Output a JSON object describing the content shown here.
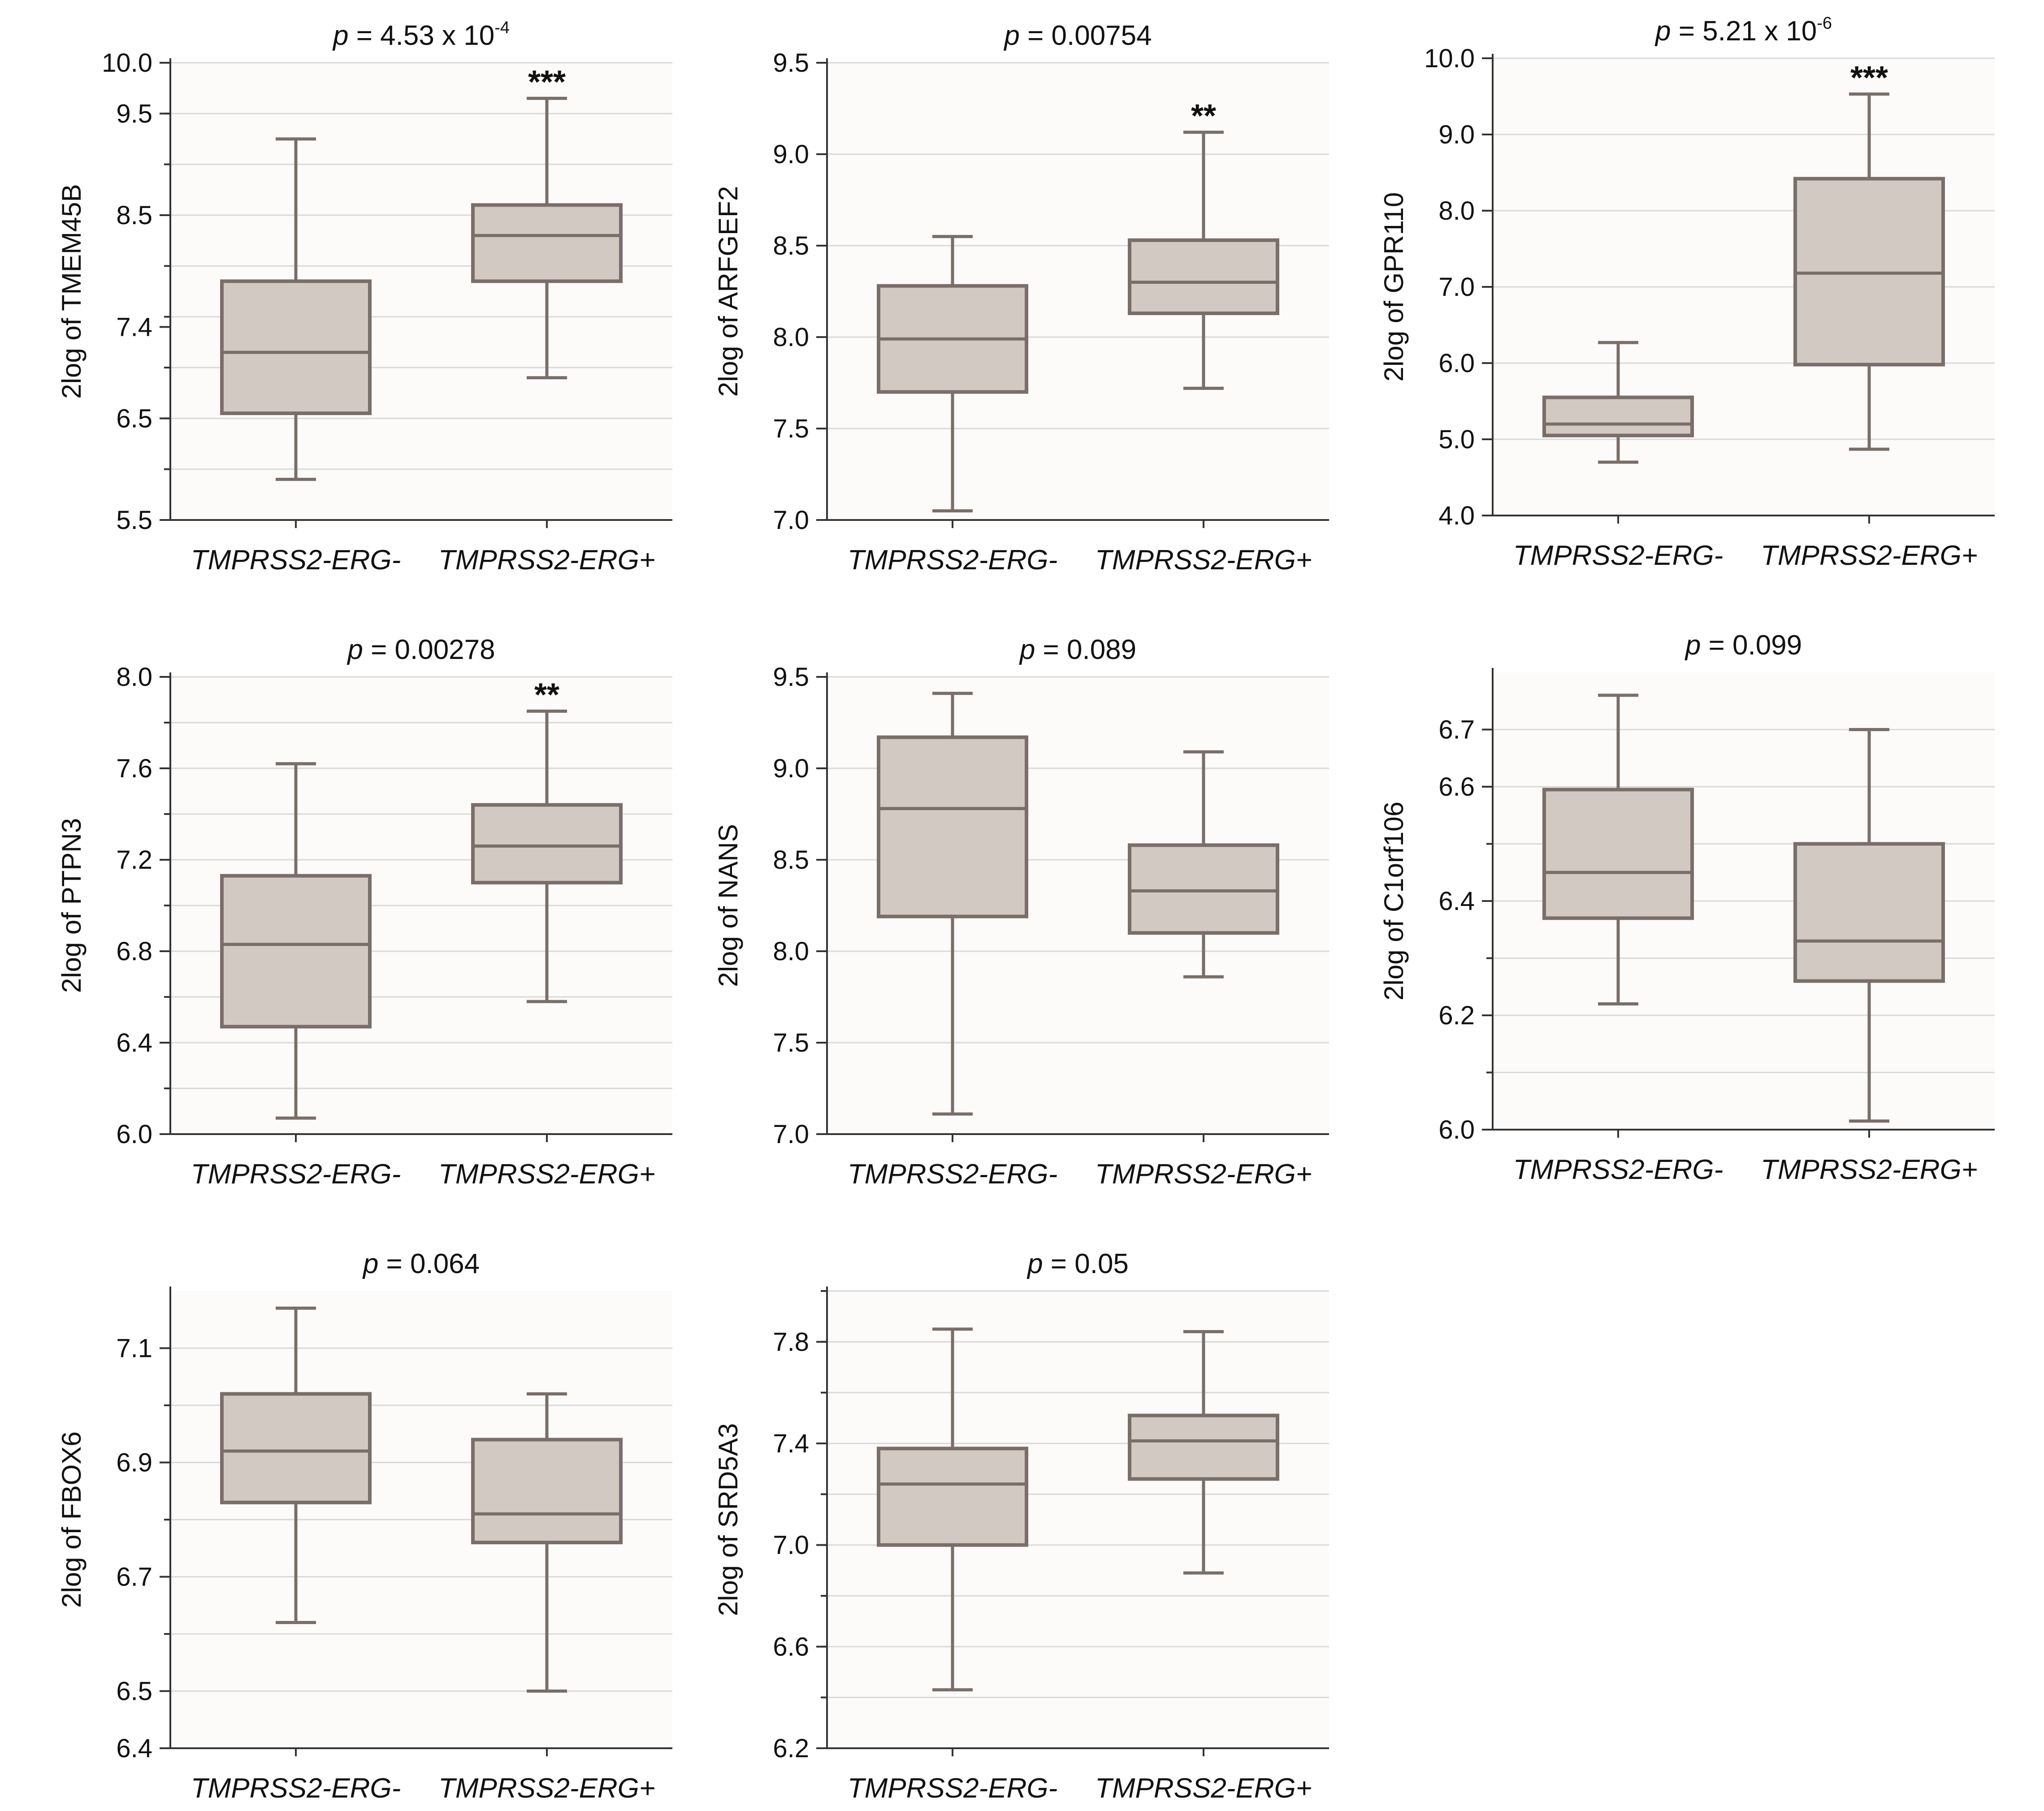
{
  "chart_data": [
    {
      "type": "box",
      "title_p": "4.53 x 10",
      "title_exp": "-4",
      "ylabel": "2log of TMEM45B",
      "ylim": [
        5.5,
        10.0
      ],
      "yticks": [
        5.5,
        6.5,
        7.4,
        8.5,
        9.5,
        10.0
      ],
      "ygrid": [
        5.5,
        6.0,
        6.5,
        7.0,
        7.5,
        8.0,
        8.5,
        9.0,
        9.5,
        10.0
      ],
      "categories": [
        "TMPRSS2-ERG-",
        "TMPRSS2-ERG+"
      ],
      "boxes": [
        {
          "min": 5.9,
          "q1": 6.55,
          "median": 7.15,
          "q3": 7.85,
          "max": 9.25
        },
        {
          "min": 6.9,
          "q1": 7.85,
          "median": 8.3,
          "q3": 8.6,
          "max": 9.65
        }
      ],
      "significance": [
        "",
        "***"
      ]
    },
    {
      "type": "box",
      "title_p": "0.00754",
      "title_exp": "",
      "ylabel": "2log of ARFGEF2",
      "ylim": [
        7.0,
        9.5
      ],
      "yticks": [
        7.0,
        7.5,
        8.0,
        8.5,
        9.0,
        9.5
      ],
      "ygrid": [
        7.0,
        7.5,
        8.0,
        8.5,
        9.0,
        9.5
      ],
      "categories": [
        "TMPRSS2-ERG-",
        "TMPRSS2-ERG+"
      ],
      "boxes": [
        {
          "min": 7.05,
          "q1": 7.7,
          "median": 7.99,
          "q3": 8.28,
          "max": 8.55
        },
        {
          "min": 7.72,
          "q1": 8.13,
          "median": 8.3,
          "q3": 8.53,
          "max": 9.12
        }
      ],
      "significance": [
        "",
        "**"
      ]
    },
    {
      "type": "box",
      "title_p": "5.21 x 10",
      "title_exp": "-6",
      "ylabel": "2log of GPR110",
      "ylim": [
        4.0,
        10.0
      ],
      "yticks": [
        4.0,
        5.0,
        6.0,
        7.0,
        8.0,
        9.0,
        10.0
      ],
      "ygrid": [
        4.0,
        5.0,
        6.0,
        7.0,
        8.0,
        9.0,
        10.0
      ],
      "categories": [
        "TMPRSS2-ERG-",
        "TMPRSS2-ERG+"
      ],
      "boxes": [
        {
          "min": 4.7,
          "q1": 5.05,
          "median": 5.2,
          "q3": 5.55,
          "max": 6.27
        },
        {
          "min": 4.87,
          "q1": 5.98,
          "median": 7.18,
          "q3": 8.42,
          "max": 9.53
        }
      ],
      "significance": [
        "",
        "***"
      ]
    },
    {
      "type": "box",
      "title_p": "0.00278",
      "title_exp": "",
      "ylabel": "2log of PTPN3",
      "ylim": [
        6.0,
        8.0
      ],
      "yticks": [
        6.0,
        6.4,
        6.8,
        7.2,
        7.6,
        8.0
      ],
      "ygrid": [
        6.0,
        6.2,
        6.4,
        6.6,
        6.8,
        7.0,
        7.2,
        7.4,
        7.6,
        7.8,
        8.0
      ],
      "categories": [
        "TMPRSS2-ERG-",
        "TMPRSS2-ERG+"
      ],
      "boxes": [
        {
          "min": 6.07,
          "q1": 6.47,
          "median": 6.83,
          "q3": 7.13,
          "max": 7.62
        },
        {
          "min": 6.58,
          "q1": 7.1,
          "median": 7.26,
          "q3": 7.44,
          "max": 7.85
        }
      ],
      "significance": [
        "",
        "**"
      ]
    },
    {
      "type": "box",
      "title_p": "0.089",
      "title_exp": "",
      "ylabel": "2log of NANS",
      "ylim": [
        7.0,
        9.5
      ],
      "yticks": [
        7.0,
        7.5,
        8.0,
        8.5,
        9.0,
        9.5
      ],
      "ygrid": [
        7.0,
        7.5,
        8.0,
        8.5,
        9.0,
        9.5
      ],
      "categories": [
        "TMPRSS2-ERG-",
        "TMPRSS2-ERG+"
      ],
      "boxes": [
        {
          "min": 7.11,
          "q1": 8.19,
          "median": 8.78,
          "q3": 9.17,
          "max": 9.41
        },
        {
          "min": 7.86,
          "q1": 8.1,
          "median": 8.33,
          "q3": 8.58,
          "max": 9.09
        }
      ],
      "significance": [
        "",
        ""
      ]
    },
    {
      "type": "box",
      "title_p": "0.099",
      "title_exp": "",
      "ylabel": "2log of C1orf106",
      "ylim": [
        6.0,
        6.8
      ],
      "yticks": [
        6.0,
        6.2,
        6.4,
        6.6,
        6.7
      ],
      "ygrid": [
        6.0,
        6.1,
        6.2,
        6.3,
        6.4,
        6.5,
        6.6,
        6.7
      ],
      "categories": [
        "TMPRSS2-ERG-",
        "TMPRSS2-ERG+"
      ],
      "boxes": [
        {
          "min": 6.22,
          "q1": 6.37,
          "median": 6.45,
          "q3": 6.595,
          "max": 6.76
        },
        {
          "min": 6.015,
          "q1": 6.26,
          "median": 6.33,
          "q3": 6.5,
          "max": 6.7
        }
      ],
      "significance": [
        "",
        ""
      ]
    },
    {
      "type": "box",
      "title_p": "0.064",
      "title_exp": "",
      "ylabel": "2log of FBOX6",
      "ylim": [
        6.4,
        7.2
      ],
      "yticks": [
        6.4,
        6.5,
        6.7,
        6.9,
        7.1
      ],
      "ygrid": [
        6.5,
        6.6,
        6.7,
        6.8,
        6.9,
        7.0,
        7.1
      ],
      "categories": [
        "TMPRSS2-ERG-",
        "TMPRSS2-ERG+"
      ],
      "boxes": [
        {
          "min": 6.62,
          "q1": 6.83,
          "median": 6.92,
          "q3": 7.02,
          "max": 7.17
        },
        {
          "min": 6.5,
          "q1": 6.76,
          "median": 6.81,
          "q3": 6.94,
          "max": 7.02
        }
      ],
      "significance": [
        "",
        ""
      ]
    },
    {
      "type": "box",
      "title_p": "0.05",
      "title_exp": "",
      "ylabel": "2log of SRD5A3",
      "ylim": [
        6.2,
        8.0
      ],
      "yticks": [
        6.2,
        6.6,
        7.0,
        7.4,
        7.8
      ],
      "ygrid": [
        6.2,
        6.4,
        6.6,
        6.8,
        7.0,
        7.2,
        7.4,
        7.6,
        7.8,
        8.0
      ],
      "categories": [
        "TMPRSS2-ERG-",
        "TMPRSS2-ERG+"
      ],
      "boxes": [
        {
          "min": 6.43,
          "q1": 7.0,
          "median": 7.24,
          "q3": 7.38,
          "max": 7.85
        },
        {
          "min": 6.89,
          "q1": 7.26,
          "median": 7.41,
          "q3": 7.51,
          "max": 7.84
        }
      ],
      "significance": [
        "",
        ""
      ]
    }
  ]
}
